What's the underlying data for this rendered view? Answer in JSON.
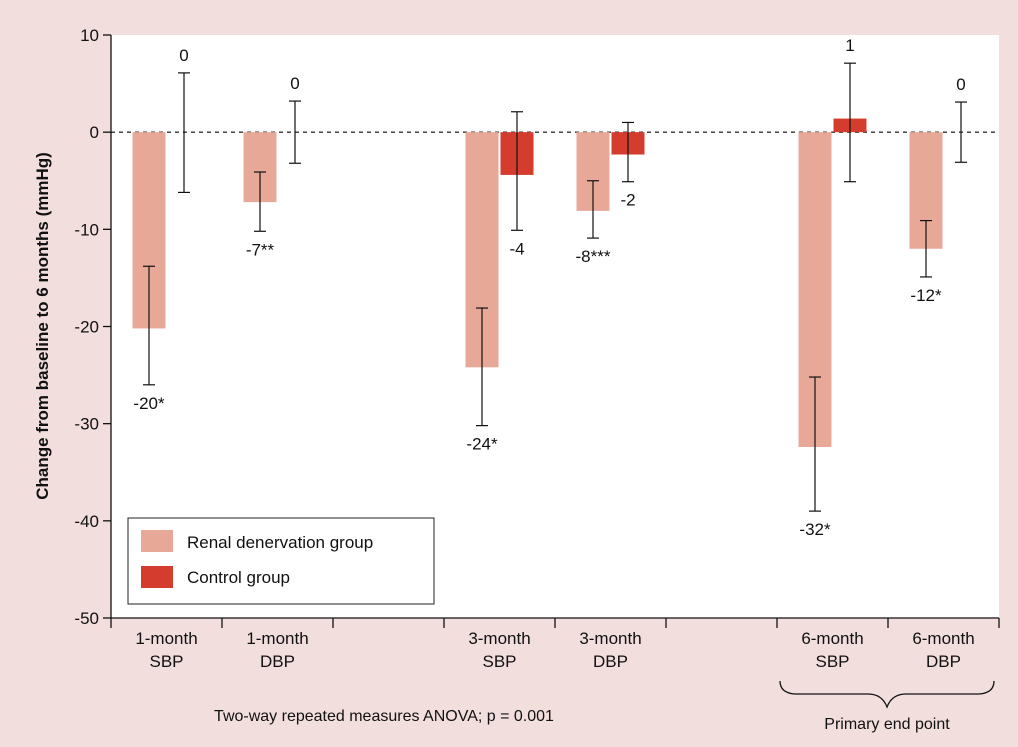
{
  "chart_data": {
    "type": "bar",
    "ylabel": "Change from baseline to 6 months (mmHg)",
    "ylim": [
      -50,
      10
    ],
    "yticks": [
      10,
      0,
      -10,
      -20,
      -30,
      -40,
      -50
    ],
    "categories": [
      {
        "line1": "1-month",
        "line2": "SBP"
      },
      {
        "line1": "1-month",
        "line2": "DBP"
      },
      {
        "line1": "",
        "line2": ""
      },
      {
        "line1": "3-month",
        "line2": "SBP"
      },
      {
        "line1": "3-month",
        "line2": "DBP"
      },
      {
        "line1": "",
        "line2": ""
      },
      {
        "line1": "6-month",
        "line2": "SBP"
      },
      {
        "line1": "6-month",
        "line2": "DBP"
      }
    ],
    "series": [
      {
        "name": "Renal denervation group",
        "color": "#e8a898",
        "values": [
          -20.2,
          -7.2,
          null,
          -24.2,
          -8.1,
          null,
          -32.4,
          -12.0
        ],
        "error_low": [
          -26.0,
          -10.2,
          null,
          -30.2,
          -10.9,
          null,
          -39.0,
          -14.9
        ],
        "error_high": [
          -13.8,
          -4.1,
          null,
          -18.1,
          -5.0,
          null,
          -25.2,
          -9.1
        ],
        "labels": [
          "-20*",
          "-7**",
          "",
          "-24*",
          "-8***",
          "",
          "-32*",
          "-12*"
        ]
      },
      {
        "name": "Control group",
        "color": "#d43d2e",
        "values": [
          0,
          0,
          null,
          -4.4,
          -2.3,
          null,
          1.4,
          0
        ],
        "error_low": [
          -6.2,
          -3.2,
          null,
          -10.1,
          -5.1,
          null,
          -5.1,
          -3.1
        ],
        "error_high": [
          6.1,
          3.2,
          null,
          2.1,
          1.0,
          null,
          7.1,
          3.1
        ],
        "labels": [
          "0",
          "0",
          "",
          "-4",
          "-2",
          "",
          "1",
          "0"
        ]
      }
    ],
    "reference_line": {
      "y": 0,
      "style": "dashed"
    },
    "legend": {
      "placement": "bottom-left"
    },
    "bracket_label": "Primary end point",
    "footnote": "Two-way repeated measures ANOVA; p = 0.001"
  }
}
